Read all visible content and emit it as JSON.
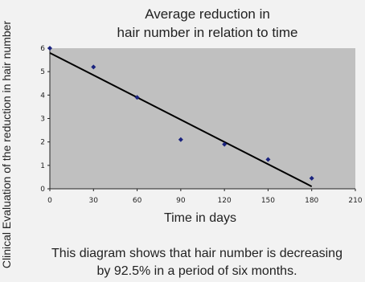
{
  "chart_data": {
    "type": "scatter",
    "title_lines": [
      "Average reduction in",
      "hair number in relation to time"
    ],
    "xlabel": "Time in days",
    "ylabel": "Clinical Evaluation of the reduction in hair number",
    "xlim": [
      0,
      210
    ],
    "ylim": [
      0,
      6
    ],
    "xticks": [
      "0",
      "30",
      "60",
      "90",
      "120",
      "150",
      "180",
      "210"
    ],
    "yticks": [
      "0",
      "1",
      "2",
      "3",
      "4",
      "5",
      "6"
    ],
    "grid": false,
    "legend": "none",
    "plot_background": "#c0c0c0",
    "marker_color": "#1a237e",
    "line_color": "#000000",
    "points": [
      {
        "x": 0,
        "y": 6.0
      },
      {
        "x": 30,
        "y": 5.2
      },
      {
        "x": 60,
        "y": 3.9
      },
      {
        "x": 90,
        "y": 2.1
      },
      {
        "x": 120,
        "y": 1.9
      },
      {
        "x": 150,
        "y": 1.25
      },
      {
        "x": 180,
        "y": 0.45
      }
    ],
    "trendline": {
      "x": [
        0,
        180
      ],
      "y": [
        5.8,
        0.1
      ]
    }
  },
  "caption_lines": [
    "This diagram shows that hair number is decreasing",
    "by 92.5% in a period of six months."
  ]
}
